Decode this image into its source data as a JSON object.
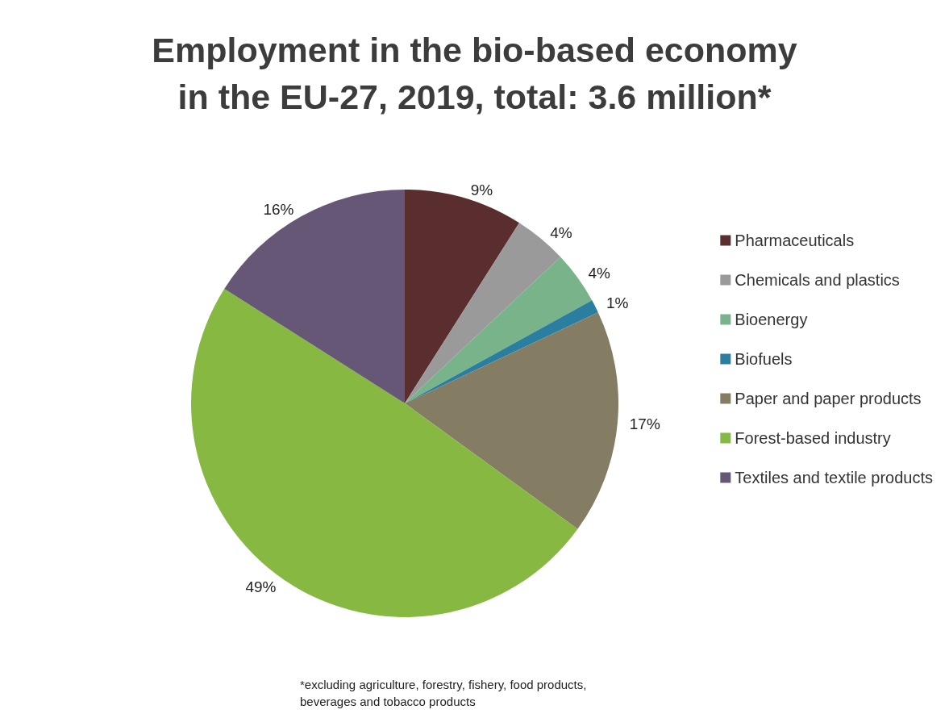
{
  "chart_data": {
    "type": "pie",
    "title": "Employment in the bio-based economy\nin the EU-27, 2019, total: 3.6 million*",
    "categories": [
      "Pharmaceuticals",
      "Chemicals and plastics",
      "Bioenergy",
      "Biofuels",
      "Paper and paper products",
      "Forest-based industry",
      "Textiles and textile products"
    ],
    "values": [
      9,
      4,
      4,
      1,
      17,
      49,
      16
    ],
    "value_labels": [
      "9%",
      "4%",
      "4%",
      "1%",
      "17%",
      "49%",
      "16%"
    ],
    "colors": [
      "#5a2d2f",
      "#9a9a9a",
      "#79b38a",
      "#2a7ea0",
      "#857c64",
      "#86b842",
      "#675777"
    ],
    "legend": "right",
    "annotations": [
      "*excluding agriculture, forestry, fishery, food products,\nbeverages and tobacco products"
    ]
  }
}
